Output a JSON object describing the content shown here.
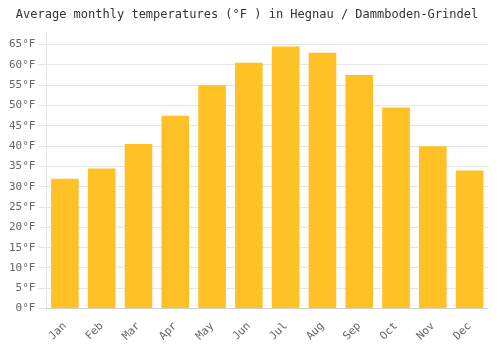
{
  "chart_data": {
    "type": "bar",
    "title": "Average monthly temperatures (°F ) in Hegnau / Dammboden-Grindel",
    "categories": [
      "Jan",
      "Feb",
      "Mar",
      "Apr",
      "May",
      "Jun",
      "Jul",
      "Aug",
      "Sep",
      "Oct",
      "Nov",
      "Dec"
    ],
    "values": [
      32,
      34.5,
      40.5,
      47.5,
      55,
      60.5,
      64.5,
      63,
      57.5,
      49.5,
      40,
      34
    ],
    "color": "#FFC125",
    "ylim": [
      0,
      68
    ],
    "yticks": [
      {
        "value": 0,
        "label": "0°F"
      },
      {
        "value": 5,
        "label": "5°F"
      },
      {
        "value": 10,
        "label": "10°F"
      },
      {
        "value": 15,
        "label": "15°F"
      },
      {
        "value": 20,
        "label": "20°F"
      },
      {
        "value": 25,
        "label": "25°F"
      },
      {
        "value": 30,
        "label": "30°F"
      },
      {
        "value": 35,
        "label": "35°F"
      },
      {
        "value": 40,
        "label": "40°F"
      },
      {
        "value": 45,
        "label": "45°F"
      },
      {
        "value": 50,
        "label": "50°F"
      },
      {
        "value": 55,
        "label": "55°F"
      },
      {
        "value": 60,
        "label": "60°F"
      },
      {
        "value": 65,
        "label": "65°F"
      }
    ],
    "grid": true
  }
}
